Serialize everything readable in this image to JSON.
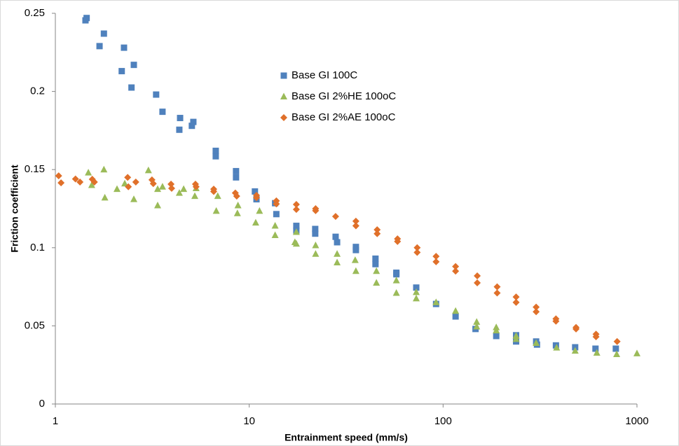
{
  "chart_data": {
    "type": "scatter",
    "x_label": "Entrainment speed (mm/s)",
    "y_label": "Friction coefficient",
    "x_scale": "log",
    "xlim": [
      1,
      1000
    ],
    "xticks": [
      1,
      10,
      100,
      1000
    ],
    "ylim": [
      0,
      0.25
    ],
    "yticks": [
      0,
      0.05,
      0.1,
      0.15,
      0.2,
      0.25
    ],
    "grid": false,
    "series": [
      {
        "name": "Base GI 100C",
        "color": "#4f81bd",
        "marker": "square",
        "x": [
          1.43,
          1.45,
          1.69,
          1.78,
          2.2,
          2.26,
          2.47,
          2.54,
          3.31,
          3.57,
          4.36,
          4.4,
          5.06,
          5.15,
          6.72,
          6.72,
          8.55,
          8.55,
          10.7,
          10.9,
          13.6,
          13.8,
          17.5,
          17.5,
          21.9,
          21.9,
          27.9,
          28.4,
          35.5,
          35.5,
          44.8,
          44.8,
          57.4,
          57.4,
          72.7,
          92,
          116,
          147,
          188,
          238,
          238,
          302,
          305,
          382,
          480,
          611,
          778
        ],
        "values": [
          0.2455,
          0.247,
          0.229,
          0.237,
          0.213,
          0.228,
          0.2025,
          0.217,
          0.198,
          0.187,
          0.1755,
          0.183,
          0.178,
          0.1805,
          0.1585,
          0.162,
          0.145,
          0.149,
          0.136,
          0.131,
          0.1285,
          0.1215,
          0.114,
          0.111,
          0.112,
          0.109,
          0.107,
          0.1035,
          0.1005,
          0.0985,
          0.093,
          0.0895,
          0.084,
          0.083,
          0.0745,
          0.064,
          0.056,
          0.048,
          0.0435,
          0.044,
          0.04,
          0.04,
          0.038,
          0.0375,
          0.0363,
          0.0354,
          0.0354
        ]
      },
      {
        "name": "Base GI 2%HE 100oC",
        "color": "#9bbb59",
        "marker": "triangle",
        "x": [
          1.48,
          1.54,
          1.78,
          1.8,
          2.08,
          2.28,
          2.54,
          3.02,
          3.37,
          3.37,
          3.57,
          4.36,
          4.59,
          5.24,
          5.32,
          6.88,
          6.76,
          8.75,
          8.69,
          10.8,
          11.3,
          13.6,
          13.6,
          17.5,
          17.2,
          17.5,
          22,
          22,
          28.4,
          28.4,
          35.2,
          35.5,
          45.3,
          45.3,
          57.4,
          57.4,
          72.7,
          72.7,
          92,
          116,
          149,
          149,
          188,
          188,
          238,
          238,
          302,
          385,
          480,
          621,
          786,
          1000
        ],
        "values": [
          0.148,
          0.14,
          0.15,
          0.132,
          0.1375,
          0.141,
          0.131,
          0.1495,
          0.127,
          0.1375,
          0.139,
          0.135,
          0.1375,
          0.133,
          0.138,
          0.133,
          0.1235,
          0.127,
          0.122,
          0.116,
          0.1235,
          0.114,
          0.108,
          0.11,
          0.1035,
          0.1025,
          0.1015,
          0.096,
          0.096,
          0.0905,
          0.092,
          0.085,
          0.085,
          0.0775,
          0.079,
          0.071,
          0.0715,
          0.0675,
          0.065,
          0.0595,
          0.0525,
          0.0495,
          0.049,
          0.047,
          0.0435,
          0.0415,
          0.039,
          0.036,
          0.034,
          0.0327,
          0.0318,
          0.0323
        ]
      },
      {
        "name": "Base GI 2%AE 100oC",
        "color": "#e0702a",
        "marker": "diamond",
        "x": [
          1.04,
          1.07,
          1.27,
          1.34,
          1.55,
          1.59,
          2.36,
          2.38,
          2.6,
          3.15,
          3.2,
          3.95,
          3.98,
          5.28,
          5.32,
          6.56,
          6.56,
          8.48,
          8.62,
          10.9,
          10.9,
          13.8,
          13.8,
          17.5,
          17.5,
          22,
          22,
          27.9,
          35.5,
          35.5,
          45.7,
          45.7,
          58.2,
          58.2,
          73.5,
          73.5,
          92,
          92,
          116,
          116,
          150,
          150,
          190,
          190,
          238,
          238,
          302,
          302,
          382,
          382,
          485,
          485,
          615,
          615,
          790
        ],
        "values": [
          0.146,
          0.1415,
          0.144,
          0.142,
          0.1438,
          0.142,
          0.145,
          0.139,
          0.142,
          0.1434,
          0.141,
          0.1407,
          0.138,
          0.1407,
          0.139,
          0.1375,
          0.136,
          0.135,
          0.133,
          0.1335,
          0.132,
          0.13,
          0.128,
          0.1277,
          0.1245,
          0.125,
          0.1237,
          0.12,
          0.117,
          0.114,
          0.1115,
          0.109,
          0.1057,
          0.104,
          0.1,
          0.097,
          0.0945,
          0.091,
          0.088,
          0.085,
          0.082,
          0.0775,
          0.075,
          0.071,
          0.0685,
          0.065,
          0.062,
          0.059,
          0.0545,
          0.053,
          0.049,
          0.048,
          0.0447,
          0.043,
          0.04
        ]
      }
    ]
  }
}
